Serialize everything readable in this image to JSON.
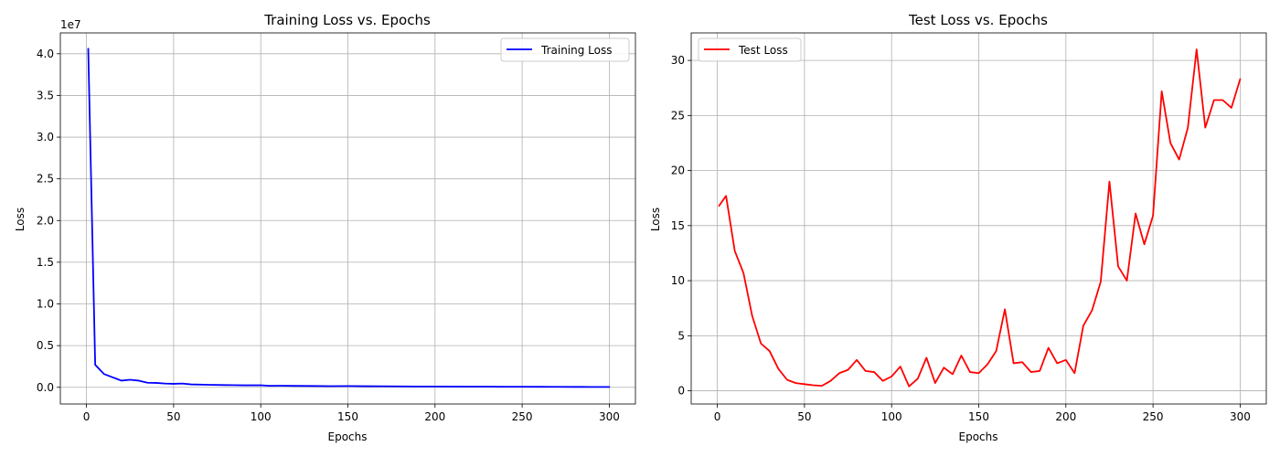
{
  "chart_data": [
    {
      "type": "line",
      "title": "Training Loss vs. Epochs",
      "xlabel": "Epochs",
      "ylabel": "Loss",
      "y_scale_label": "1e7",
      "xlim": [
        -15,
        315
      ],
      "ylim": [
        -2000000,
        42500000
      ],
      "xticks": [
        0,
        50,
        100,
        150,
        200,
        250,
        300
      ],
      "yticks": [
        0,
        5000000,
        10000000,
        15000000,
        20000000,
        25000000,
        30000000,
        35000000,
        40000000
      ],
      "ytick_labels": [
        "0.0",
        "0.5",
        "1.0",
        "1.5",
        "2.0",
        "2.5",
        "3.0",
        "3.5",
        "4.0"
      ],
      "grid": true,
      "legend_position": "top-right",
      "series": [
        {
          "name": "Training Loss",
          "color": "#0000ff",
          "x": [
            1,
            5,
            10,
            15,
            20,
            25,
            30,
            35,
            40,
            45,
            50,
            55,
            60,
            70,
            80,
            90,
            100,
            105,
            110,
            120,
            130,
            140,
            150,
            160,
            170,
            180,
            190,
            200,
            210,
            220,
            230,
            240,
            250,
            260,
            270,
            280,
            290,
            300
          ],
          "y": [
            40600000,
            2700000,
            1600000,
            1200000,
            800000,
            900000,
            800000,
            550000,
            530000,
            450000,
            420000,
            450000,
            350000,
            300000,
            270000,
            240000,
            250000,
            180000,
            190000,
            170000,
            160000,
            140000,
            150000,
            130000,
            120000,
            110000,
            100000,
            95000,
            90000,
            85000,
            80000,
            70000,
            65000,
            60000,
            55000,
            50000,
            45000,
            40000
          ]
        }
      ]
    },
    {
      "type": "line",
      "title": "Test Loss vs. Epochs",
      "xlabel": "Epochs",
      "ylabel": "Loss",
      "xlim": [
        -15,
        315
      ],
      "ylim": [
        -1.2,
        32.5
      ],
      "xticks": [
        0,
        50,
        100,
        150,
        200,
        250,
        300
      ],
      "yticks": [
        0,
        5,
        10,
        15,
        20,
        25,
        30
      ],
      "ytick_labels": [
        "0",
        "5",
        "10",
        "15",
        "20",
        "25",
        "30"
      ],
      "grid": true,
      "legend_position": "top-left",
      "series": [
        {
          "name": "Test Loss",
          "color": "#ff0000",
          "x": [
            1,
            5,
            10,
            15,
            20,
            25,
            30,
            35,
            40,
            45,
            50,
            55,
            60,
            65,
            70,
            75,
            80,
            85,
            90,
            95,
            100,
            105,
            110,
            115,
            120,
            125,
            130,
            135,
            140,
            145,
            150,
            155,
            160,
            165,
            170,
            175,
            180,
            185,
            190,
            195,
            200,
            205,
            210,
            215,
            220,
            225,
            230,
            235,
            240,
            245,
            250,
            255,
            260,
            265,
            270,
            275,
            280,
            285,
            290,
            295,
            300
          ],
          "y": [
            16.8,
            17.7,
            12.7,
            10.7,
            6.8,
            4.3,
            3.6,
            2.0,
            1.0,
            0.7,
            0.6,
            0.5,
            0.45,
            0.9,
            1.6,
            1.9,
            2.8,
            1.8,
            1.7,
            0.9,
            1.3,
            2.2,
            0.4,
            1.1,
            3.0,
            0.7,
            2.1,
            1.5,
            3.2,
            1.7,
            1.6,
            2.4,
            3.6,
            7.4,
            2.5,
            2.6,
            1.7,
            1.8,
            3.9,
            2.5,
            2.8,
            1.6,
            5.9,
            7.3,
            9.9,
            19.0,
            11.3,
            10.0,
            16.1,
            13.3,
            15.9,
            27.2,
            22.5,
            21.0,
            23.9,
            31.0,
            23.9,
            26.4,
            26.4,
            25.7,
            28.3
          ]
        }
      ]
    }
  ]
}
